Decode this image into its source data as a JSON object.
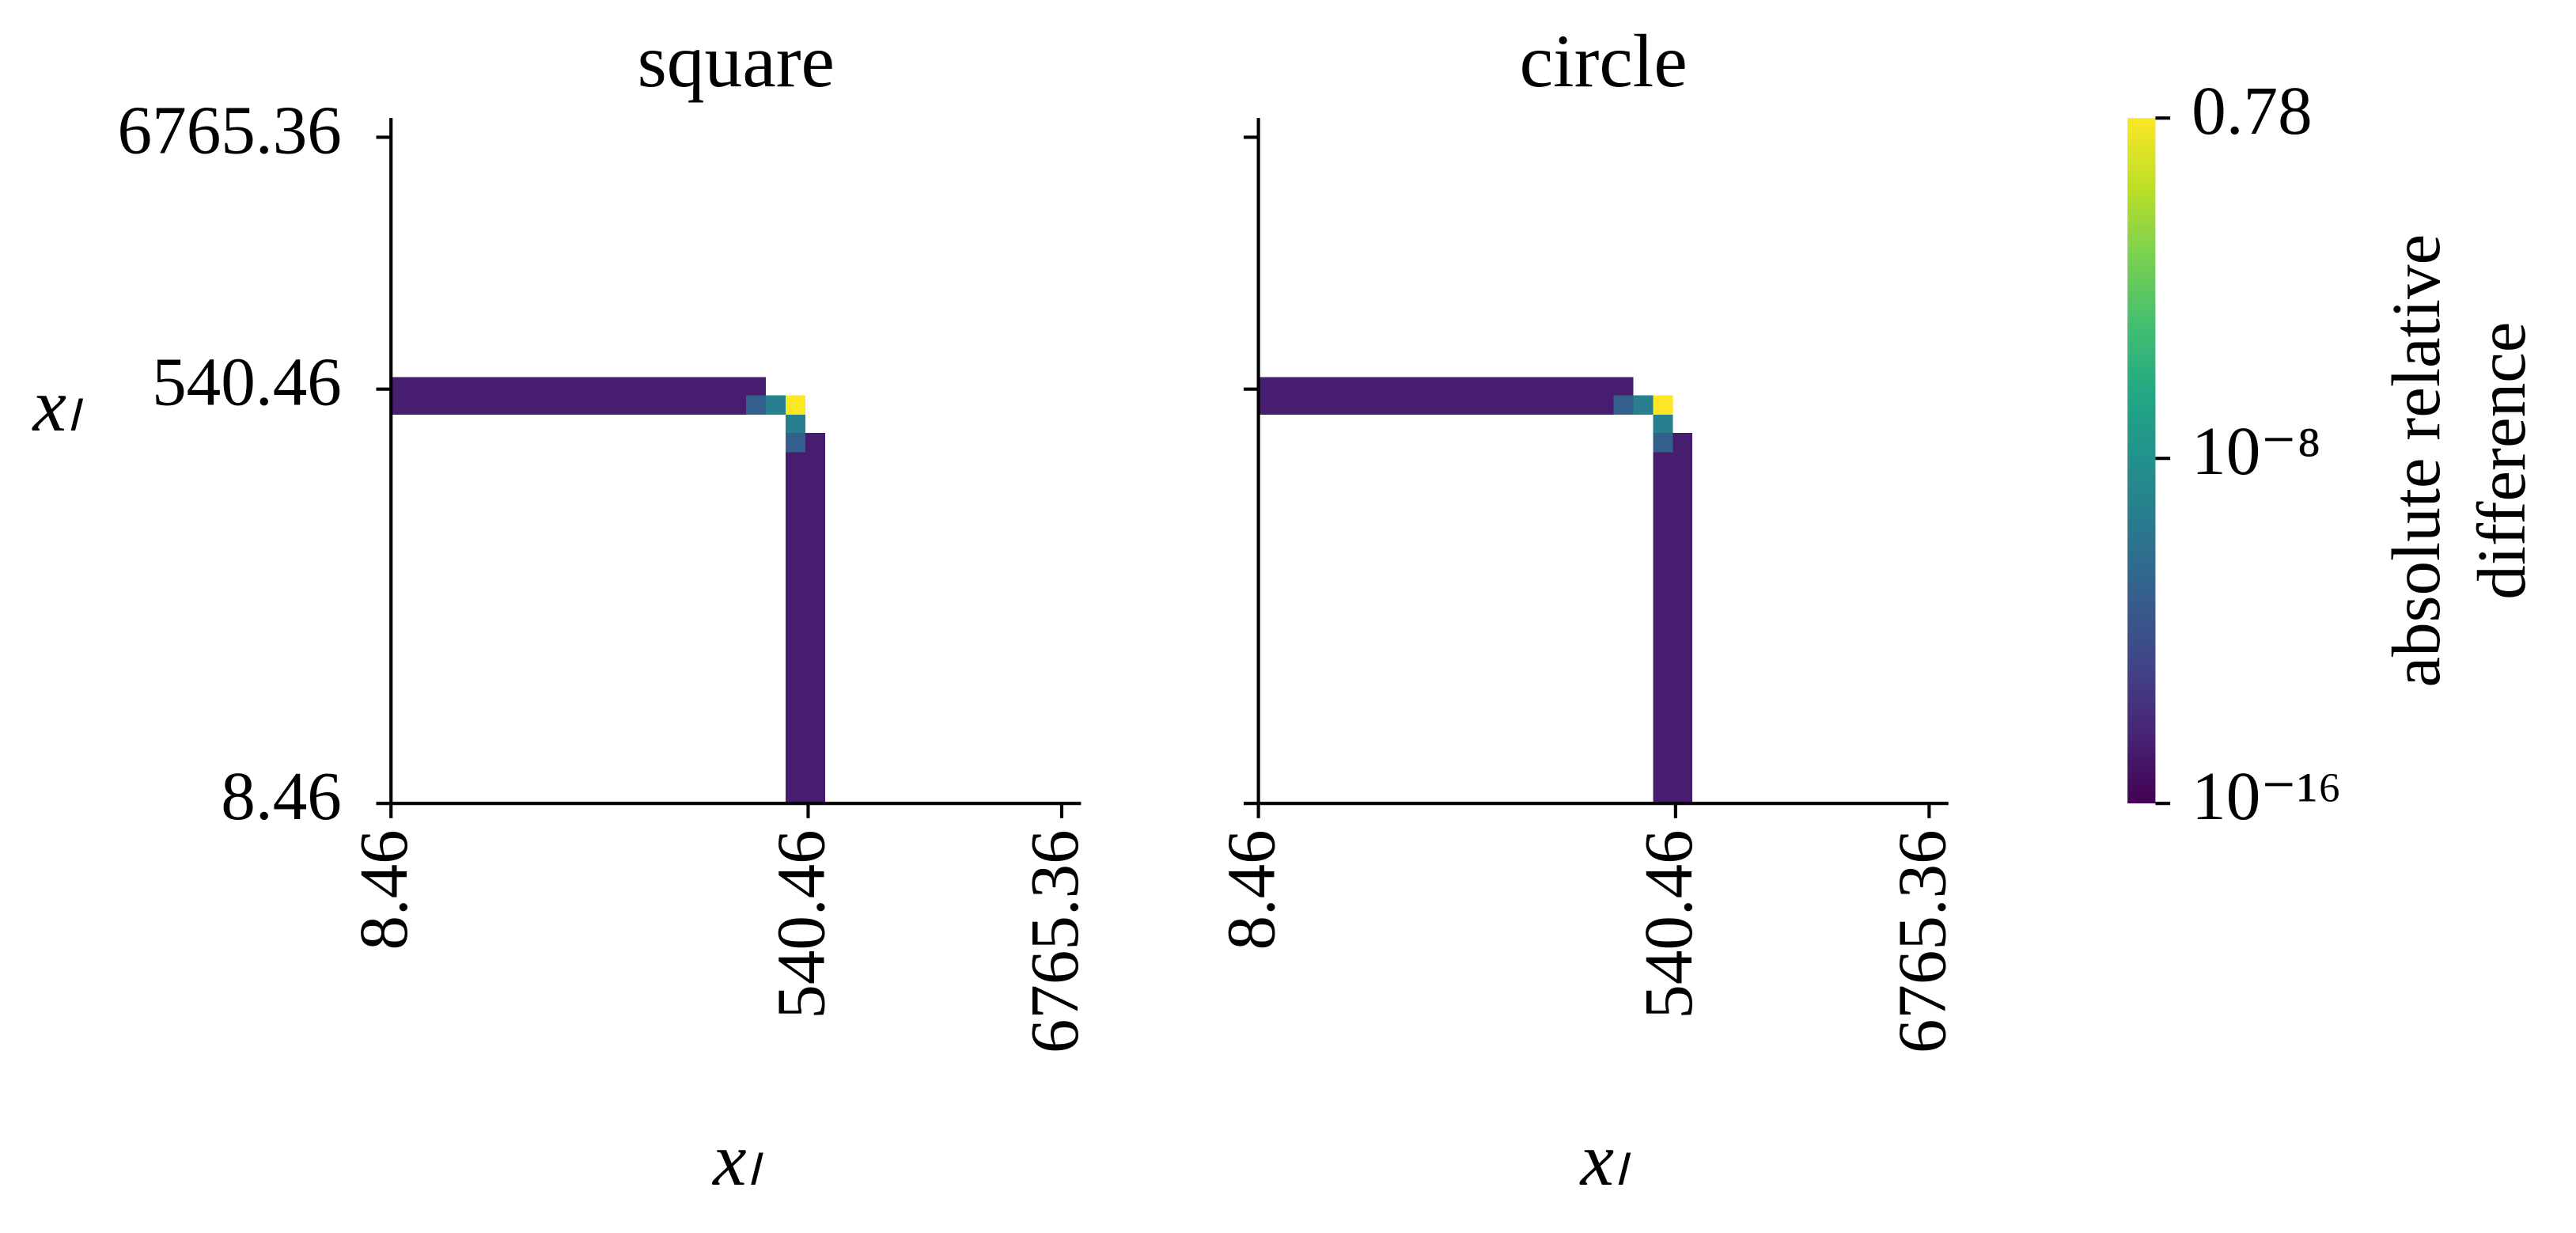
{
  "chart_data": [
    {
      "type": "heatmap",
      "title": "square",
      "xlabel": "xₗ",
      "ylabel": "xₗ",
      "xscale": "log",
      "yscale": "log",
      "xlim": [
        8.46,
        8200
      ],
      "ylim": [
        8.46,
        8200
      ],
      "xticks": [
        8.46,
        540.46,
        6765.36
      ],
      "yticks": [
        8.46,
        540.46,
        6765.36
      ],
      "show_ytick_labels": true,
      "cmap": "viridis",
      "cells": [
        {
          "x": [
            8.46,
            354.4
          ],
          "y": [
            508.4,
            608.6
          ],
          "value": 2e-15
        },
        {
          "x": [
            8.46,
            291.2
          ],
          "y": [
            417.7,
            508.4
          ],
          "value": 2e-15
        },
        {
          "x": [
            291.2,
            354.4
          ],
          "y": [
            417.7,
            508.4
          ],
          "value": 6e-12
        },
        {
          "x": [
            354.4,
            431.5
          ],
          "y": [
            417.7,
            508.4
          ],
          "value": 6e-10
        },
        {
          "x": [
            431.5,
            525.3
          ],
          "y": [
            417.7,
            508.4
          ],
          "value": 0.78
        },
        {
          "x": [
            431.5,
            525.3
          ],
          "y": [
            348.7,
            417.7
          ],
          "value": 6e-10
        },
        {
          "x": [
            431.5,
            525.3
          ],
          "y": [
            286.5,
            348.7
          ],
          "value": 6e-12
        },
        {
          "x": [
            431.5,
            525.3
          ],
          "y": [
            8.46,
            286.5
          ],
          "value": 2e-15
        },
        {
          "x": [
            525.3,
            639.3
          ],
          "y": [
            8.46,
            348.7
          ],
          "value": 2e-15
        }
      ]
    },
    {
      "type": "heatmap",
      "title": "circle",
      "xlabel": "xₗ",
      "xscale": "log",
      "yscale": "log",
      "xlim": [
        8.46,
        8200
      ],
      "ylim": [
        8.46,
        8200
      ],
      "xticks": [
        8.46,
        540.46,
        6765.36
      ],
      "yticks": [
        8.46,
        540.46,
        6765.36
      ],
      "show_ytick_labels": false,
      "cmap": "viridis",
      "cells": [
        {
          "x": [
            8.46,
            354.4
          ],
          "y": [
            508.4,
            608.6
          ],
          "value": 2e-15
        },
        {
          "x": [
            8.46,
            291.2
          ],
          "y": [
            417.7,
            508.4
          ],
          "value": 2e-15
        },
        {
          "x": [
            291.2,
            354.4
          ],
          "y": [
            417.7,
            508.4
          ],
          "value": 6e-12
        },
        {
          "x": [
            354.4,
            431.5
          ],
          "y": [
            417.7,
            508.4
          ],
          "value": 6e-10
        },
        {
          "x": [
            431.5,
            525.3
          ],
          "y": [
            417.7,
            508.4
          ],
          "value": 0.78
        },
        {
          "x": [
            431.5,
            525.3
          ],
          "y": [
            348.7,
            417.7
          ],
          "value": 6e-10
        },
        {
          "x": [
            431.5,
            525.3
          ],
          "y": [
            286.5,
            348.7
          ],
          "value": 6e-12
        },
        {
          "x": [
            431.5,
            525.3
          ],
          "y": [
            8.46,
            286.5
          ],
          "value": 2e-15
        },
        {
          "x": [
            525.3,
            639.3
          ],
          "y": [
            8.46,
            348.7
          ],
          "value": 2e-15
        }
      ]
    },
    {
      "type": "colorbar",
      "cmap": "viridis",
      "scale": "log",
      "lim": [
        1e-16,
        0.78
      ],
      "ticks": [
        {
          "value": 1e-16,
          "label": "10⁻¹⁶"
        },
        {
          "value": 1e-08,
          "label": "10⁻⁸"
        },
        0.78
      ],
      "label": [
        "absolute relative",
        "difference"
      ]
    }
  ]
}
